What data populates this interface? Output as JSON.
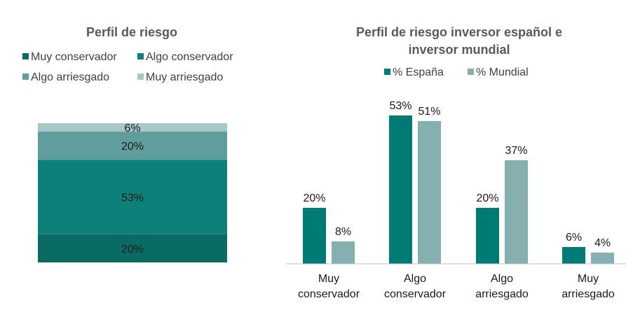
{
  "chart_data": [
    {
      "type": "bar",
      "subtype": "stacked-100",
      "title": "Perfil de riesgo",
      "legend": [
        "Muy conservador",
        "Algo conservador",
        "Algo arriesgado",
        "Muy arriesgado"
      ],
      "segments": [
        {
          "name": "Muy conservador",
          "value": 20,
          "label": "20%",
          "color": "#0a6b64"
        },
        {
          "name": "Algo conservador",
          "value": 53,
          "label": "53%",
          "color": "#0c8079"
        },
        {
          "name": "Algo arriesgado",
          "value": 20,
          "label": "20%",
          "color": "#5f9e9c"
        },
        {
          "name": "Muy arriesgado",
          "value": 6,
          "label": "6%",
          "color": "#a8c8c7"
        }
      ],
      "ylim": [
        0,
        99
      ]
    },
    {
      "type": "bar",
      "subtype": "grouped",
      "title_lines": [
        "Perfil de riesgo inversor español e",
        "inversor mundial"
      ],
      "categories": [
        [
          "Muy",
          "conservador"
        ],
        [
          "Algo",
          "conservador"
        ],
        [
          "Algo",
          "arriesgado"
        ],
        [
          "Muy",
          "arriesgado"
        ]
      ],
      "series": [
        {
          "name": "% España",
          "values": [
            20,
            53,
            20,
            6
          ],
          "labels": [
            "20%",
            "53%",
            "20%",
            "6%"
          ],
          "color": "#007a75"
        },
        {
          "name": "% Mundial",
          "values": [
            8,
            51,
            37,
            4
          ],
          "labels": [
            "8%",
            "51%",
            "37%",
            "4%"
          ],
          "color": "#86b0b0"
        }
      ],
      "ylim": [
        0,
        60
      ]
    }
  ]
}
